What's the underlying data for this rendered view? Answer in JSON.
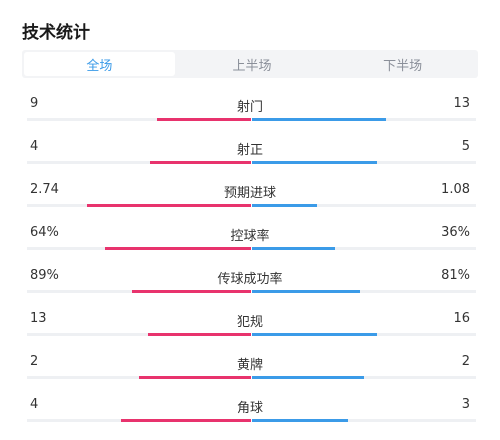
{
  "title": "技术统计",
  "tabs": [
    {
      "label": "全场",
      "active": true
    },
    {
      "label": "上半场",
      "active": false
    },
    {
      "label": "下半场",
      "active": false
    }
  ],
  "colors": {
    "home": "#e8336d",
    "away": "#3b9be8",
    "track": "#eef0f3",
    "active_tab": "#3b9be8"
  },
  "stats": [
    {
      "name": "射门",
      "left": "9",
      "right": "13",
      "left_fraction": 0.42,
      "right_fraction": 0.6
    },
    {
      "name": "射正",
      "left": "4",
      "right": "5",
      "left_fraction": 0.45,
      "right_fraction": 0.56
    },
    {
      "name": "预期进球",
      "left": "2.74",
      "right": "1.08",
      "left_fraction": 0.73,
      "right_fraction": 0.29
    },
    {
      "name": "控球率",
      "left": "64%",
      "right": "36%",
      "left_fraction": 0.65,
      "right_fraction": 0.37
    },
    {
      "name": "传球成功率",
      "left": "89%",
      "right": "81%",
      "left_fraction": 0.53,
      "right_fraction": 0.48
    },
    {
      "name": "犯规",
      "left": "13",
      "right": "16",
      "left_fraction": 0.46,
      "right_fraction": 0.56
    },
    {
      "name": "黄牌",
      "left": "2",
      "right": "2",
      "left_fraction": 0.5,
      "right_fraction": 0.5
    },
    {
      "name": "角球",
      "left": "4",
      "right": "3",
      "left_fraction": 0.58,
      "right_fraction": 0.43
    }
  ]
}
